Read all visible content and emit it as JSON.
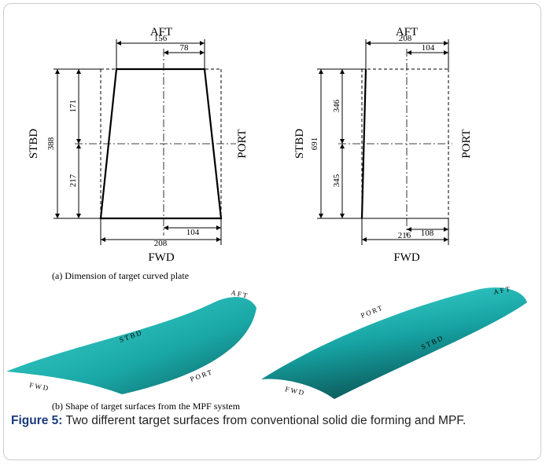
{
  "panels": [
    {
      "top": "AFT",
      "bottom": "FWD",
      "left": "STBD",
      "right": "PORT",
      "top_dims": [
        156,
        78
      ],
      "bottom_dims": [
        104,
        208
      ],
      "left_total": 388,
      "left_parts": [
        171,
        217
      ]
    },
    {
      "top": "AFT",
      "bottom": "FWD",
      "left": "STBD",
      "right": "PORT",
      "top_dims": [
        208,
        104
      ],
      "bottom_dims": [
        108,
        216
      ],
      "left_total": 691,
      "left_parts": [
        346,
        345
      ]
    }
  ],
  "subcaptions": [
    "(a)  Dimension of target curved plate",
    "(b)  Shape of target surfaces from the MPF system"
  ],
  "surfaces": [
    {
      "aft": "AFT",
      "stbd": "STBD",
      "port": "PORT",
      "fwd": "FWD"
    },
    {
      "aft": "AFT",
      "stbd": "STBD",
      "port": "PORT",
      "fwd": "FWD"
    }
  ],
  "caption": {
    "label": "Figure 5:",
    "text": " Two different target surfaces from conventional solid die forming and MPF."
  }
}
